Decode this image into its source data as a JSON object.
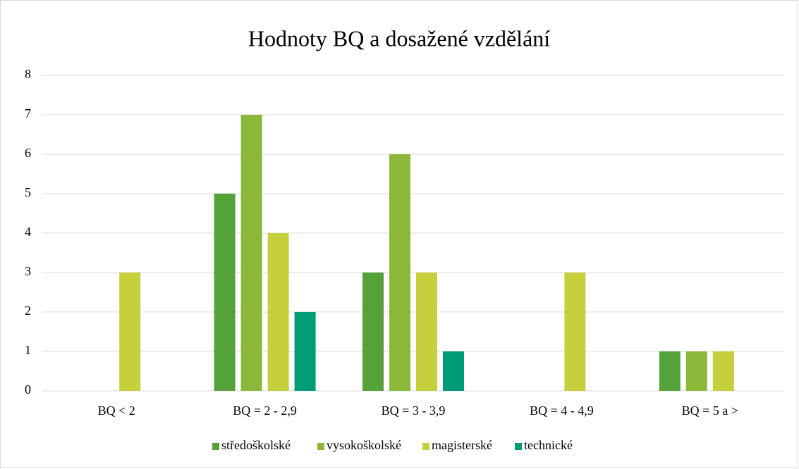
{
  "chart_data": {
    "type": "bar",
    "title": "Hodnoty BQ a dosažené vzdělání",
    "categories": [
      "BQ < 2",
      "BQ = 2 - 2,9",
      "BQ = 3 - 3,9",
      "BQ = 4 - 4,9",
      "BQ = 5 a >"
    ],
    "series": [
      {
        "name": "středoškolské",
        "color": "#55a13a",
        "values": [
          0,
          5,
          3,
          0,
          1
        ]
      },
      {
        "name": "vysokoškolské",
        "color": "#8cb83a",
        "values": [
          0,
          7,
          6,
          0,
          1
        ]
      },
      {
        "name": "magisterské",
        "color": "#c5d03c",
        "values": [
          3,
          4,
          3,
          3,
          1
        ]
      },
      {
        "name": "technické",
        "color": "#009b77",
        "values": [
          0,
          2,
          1,
          0,
          0
        ]
      }
    ],
    "ylim": [
      0,
      8
    ],
    "yticks": [
      0,
      1,
      2,
      3,
      4,
      5,
      6,
      7,
      8
    ],
    "grid": true,
    "legend": "bottom"
  }
}
